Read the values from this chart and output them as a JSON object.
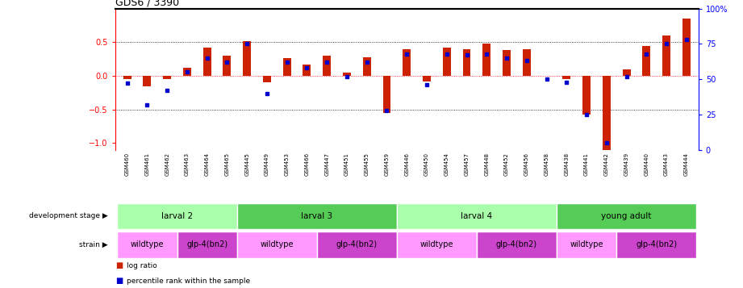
{
  "title": "GDS6 / 3390",
  "samples": [
    "GSM460",
    "GSM461",
    "GSM462",
    "GSM463",
    "GSM464",
    "GSM465",
    "GSM445",
    "GSM449",
    "GSM453",
    "GSM466",
    "GSM447",
    "GSM451",
    "GSM455",
    "GSM459",
    "GSM446",
    "GSM450",
    "GSM454",
    "GSM457",
    "GSM448",
    "GSM452",
    "GSM456",
    "GSM458",
    "GSM438",
    "GSM441",
    "GSM442",
    "GSM439",
    "GSM440",
    "GSM443",
    "GSM444"
  ],
  "log_ratio": [
    -0.05,
    -0.15,
    -0.05,
    0.12,
    0.42,
    0.3,
    0.52,
    -0.1,
    0.27,
    0.17,
    0.3,
    0.05,
    0.28,
    -0.55,
    0.4,
    -0.08,
    0.42,
    0.4,
    0.48,
    0.38,
    0.4,
    0.0,
    -0.05,
    -0.58,
    -1.1,
    0.1,
    0.45,
    0.6,
    0.85
  ],
  "percentile": [
    47,
    32,
    42,
    55,
    65,
    62,
    75,
    40,
    62,
    58,
    62,
    52,
    62,
    28,
    68,
    46,
    68,
    67,
    68,
    65,
    63,
    50,
    48,
    25,
    5,
    52,
    68,
    75,
    78
  ],
  "dev_stage_groups": [
    {
      "label": "larval 2",
      "start": 0,
      "end": 5,
      "color": "#aaffaa"
    },
    {
      "label": "larval 3",
      "start": 6,
      "end": 13,
      "color": "#55cc55"
    },
    {
      "label": "larval 4",
      "start": 14,
      "end": 21,
      "color": "#aaffaa"
    },
    {
      "label": "young adult",
      "start": 22,
      "end": 28,
      "color": "#55cc55"
    }
  ],
  "strain_groups": [
    {
      "label": "wildtype",
      "start": 0,
      "end": 2,
      "color": "#ff99ff"
    },
    {
      "label": "glp-4(bn2)",
      "start": 3,
      "end": 5,
      "color": "#cc44cc"
    },
    {
      "label": "wildtype",
      "start": 6,
      "end": 9,
      "color": "#ff99ff"
    },
    {
      "label": "glp-4(bn2)",
      "start": 10,
      "end": 13,
      "color": "#cc44cc"
    },
    {
      "label": "wildtype",
      "start": 14,
      "end": 17,
      "color": "#ff99ff"
    },
    {
      "label": "glp-4(bn2)",
      "start": 18,
      "end": 21,
      "color": "#cc44cc"
    },
    {
      "label": "wildtype",
      "start": 22,
      "end": 24,
      "color": "#ff99ff"
    },
    {
      "label": "glp-4(bn2)",
      "start": 25,
      "end": 28,
      "color": "#cc44cc"
    }
  ],
  "bar_color": "#cc2200",
  "dot_color": "#0000cc",
  "ylim": [
    -1.1,
    1.0
  ],
  "y2lim": [
    0,
    100
  ],
  "yticks": [
    -1.0,
    -0.5,
    0.0,
    0.5
  ],
  "y2ticks": [
    0,
    25,
    50,
    75,
    100
  ],
  "y2ticklabels": [
    "0",
    "25",
    "50",
    "75",
    "100%"
  ],
  "hlines_dotted": [
    -0.5,
    0.5
  ],
  "background_color": "#ffffff"
}
